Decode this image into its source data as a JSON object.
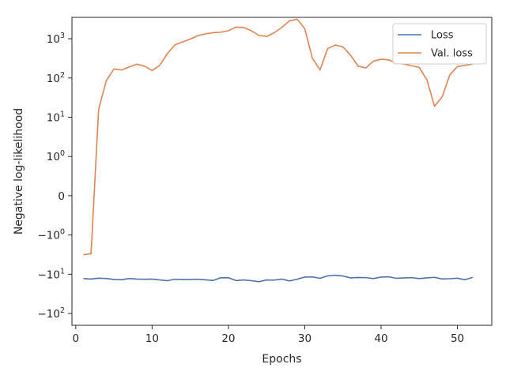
{
  "chart_data": {
    "type": "line",
    "title": "",
    "xlabel": "Epochs",
    "ylabel": "Negative log-likelihood",
    "yscale": "symlog",
    "xlim": [
      -0.5,
      54.5
    ],
    "ylim": [
      -200,
      3500
    ],
    "grid": false,
    "legend_position": "top-right",
    "x_ticks": [
      {
        "value": 0,
        "label": "0"
      },
      {
        "value": 10,
        "label": "10"
      },
      {
        "value": 20,
        "label": "20"
      },
      {
        "value": 30,
        "label": "30"
      },
      {
        "value": 40,
        "label": "40"
      },
      {
        "value": 50,
        "label": "50"
      }
    ],
    "y_ticks": [
      {
        "value": 1000,
        "base": "10",
        "exp": "3",
        "sign": ""
      },
      {
        "value": 100,
        "base": "10",
        "exp": "2",
        "sign": ""
      },
      {
        "value": 10,
        "base": "10",
        "exp": "1",
        "sign": ""
      },
      {
        "value": 1,
        "base": "10",
        "exp": "0",
        "sign": ""
      },
      {
        "value": 0,
        "base": "0",
        "exp": "",
        "sign": ""
      },
      {
        "value": -1,
        "base": "10",
        "exp": "0",
        "sign": "−"
      },
      {
        "value": -10,
        "base": "10",
        "exp": "1",
        "sign": "−"
      },
      {
        "value": -100,
        "base": "10",
        "exp": "2",
        "sign": "−"
      }
    ],
    "x": [
      1,
      2,
      3,
      4,
      5,
      6,
      7,
      8,
      9,
      10,
      11,
      12,
      13,
      14,
      15,
      16,
      17,
      18,
      19,
      20,
      21,
      22,
      23,
      24,
      25,
      26,
      27,
      28,
      29,
      30,
      31,
      32,
      33,
      34,
      35,
      36,
      37,
      38,
      39,
      40,
      41,
      42,
      43,
      44,
      45,
      46,
      47,
      48,
      49,
      50,
      51,
      52
    ],
    "series": [
      {
        "name": "Loss",
        "color": "#4c72b0",
        "values": [
          -12.9,
          -13.3,
          -12.6,
          -12.8,
          -13.6,
          -13.8,
          -12.8,
          -13.3,
          -13.4,
          -13.3,
          -14.0,
          -14.6,
          -13.4,
          -13.6,
          -13.6,
          -13.4,
          -13.9,
          -14.4,
          -12.3,
          -12.3,
          -14.5,
          -14.0,
          -14.6,
          -15.5,
          -14.0,
          -14.1,
          -13.3,
          -14.8,
          -13.4,
          -11.8,
          -11.7,
          -12.7,
          -11.0,
          -10.6,
          -11.1,
          -12.4,
          -12.1,
          -12.2,
          -12.9,
          -11.8,
          -11.6,
          -12.7,
          -12.4,
          -12.2,
          -12.9,
          -12.4,
          -12.0,
          -13.2,
          -13.0,
          -12.6,
          -13.8,
          -12.0
        ]
      },
      {
        "name": "Val. loss",
        "color": "#dd8452",
        "values": [
          -3.2,
          -3.0,
          16,
          85,
          170,
          160,
          190,
          225,
          200,
          155,
          210,
          420,
          700,
          830,
          980,
          1200,
          1330,
          1430,
          1470,
          1600,
          1980,
          1930,
          1600,
          1220,
          1140,
          1420,
          1950,
          2850,
          3150,
          1800,
          320,
          160,
          560,
          690,
          620,
          380,
          200,
          180,
          270,
          300,
          290,
          240,
          225,
          205,
          185,
          90,
          19,
          33,
          120,
          195,
          210,
          225
        ]
      }
    ]
  }
}
